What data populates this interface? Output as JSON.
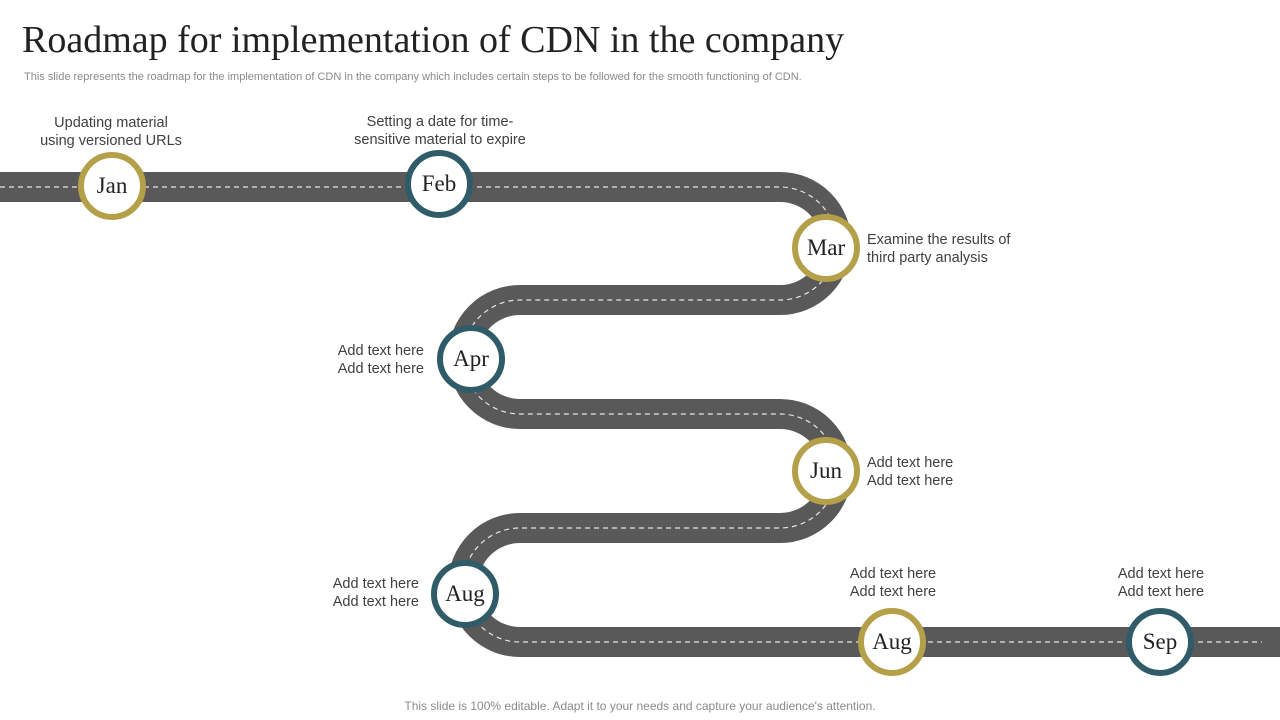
{
  "title": "Roadmap for implementation of CDN in the company",
  "subtitle": "This slide represents the roadmap for the implementation of CDN in the company which includes certain steps to be followed for the smooth functioning of CDN.",
  "footer": "This slide is 100% editable. Adapt it to your needs and capture your audience's attention.",
  "colors": {
    "gold": "#b5a04a",
    "teal": "#2f5c68",
    "road": "#595959",
    "lane": "#e6e6e6"
  },
  "milestones": [
    {
      "label": "Jan",
      "color": "gold",
      "text_line1": "Updating material",
      "text_line2": "using versioned URLs"
    },
    {
      "label": "Feb",
      "color": "teal",
      "text_line1": "Setting a date for time-",
      "text_line2": "sensitive material to expire"
    },
    {
      "label": "Mar",
      "color": "gold",
      "text_line1": "Examine the results of",
      "text_line2": "third party analysis"
    },
    {
      "label": "Apr",
      "color": "teal",
      "text_line1": "Add text here",
      "text_line2": "Add text here"
    },
    {
      "label": "Jun",
      "color": "gold",
      "text_line1": "Add text here",
      "text_line2": "Add text here"
    },
    {
      "label": "Aug",
      "color": "teal",
      "text_line1": "Add text here",
      "text_line2": "Add text here"
    },
    {
      "label": "Aug",
      "color": "gold",
      "text_line1": "Add text here",
      "text_line2": "Add text here"
    },
    {
      "label": "Sep",
      "color": "teal",
      "text_line1": "Add text here",
      "text_line2": "Add text here"
    }
  ]
}
